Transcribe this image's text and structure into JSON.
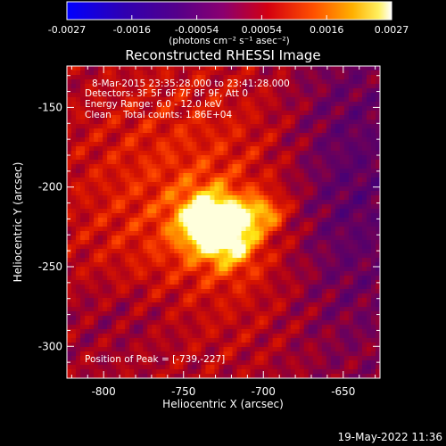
{
  "colorbar": {
    "tick_labels": [
      "-0.0027",
      "-0.0016",
      "-0.00054",
      "0.00054",
      "0.0016",
      "0.0027"
    ],
    "units": "(photons cm⁻² s⁻¹ asec⁻²)"
  },
  "title": "Reconstructed RHESSI Image",
  "annotations": {
    "time_range": "8-Mar-2015 23:35:28.000 to 23:41:28.000",
    "detectors": "Detectors: 3F 5F 6F 7F 8F 9F, Att 0",
    "energy_range": "Energy Range: 6.0 - 12.0 keV",
    "clean_counts": "Clean    Total counts: 1.86E+04",
    "peak_position": "Position of Peak = [-739,-227]"
  },
  "axes": {
    "xlabel": "Heliocentric X (arcsec)",
    "ylabel": "Heliocentric Y (arcsec)",
    "x_tick_labels": [
      "-800",
      "-750",
      "-700",
      "-650"
    ],
    "y_tick_labels": [
      "-150",
      "-200",
      "-250",
      "-300"
    ],
    "x_range": [
      -823,
      -627
    ],
    "y_range": [
      -320,
      -124
    ]
  },
  "timestamp": "19-May-2022 11:36",
  "colors": {
    "background": "#000000",
    "colormap": [
      "#0000ff",
      "#40009a",
      "#7e0078",
      "#c80010",
      "#ff3a00",
      "#ff9900",
      "#ffe800",
      "#ffffff"
    ]
  }
}
